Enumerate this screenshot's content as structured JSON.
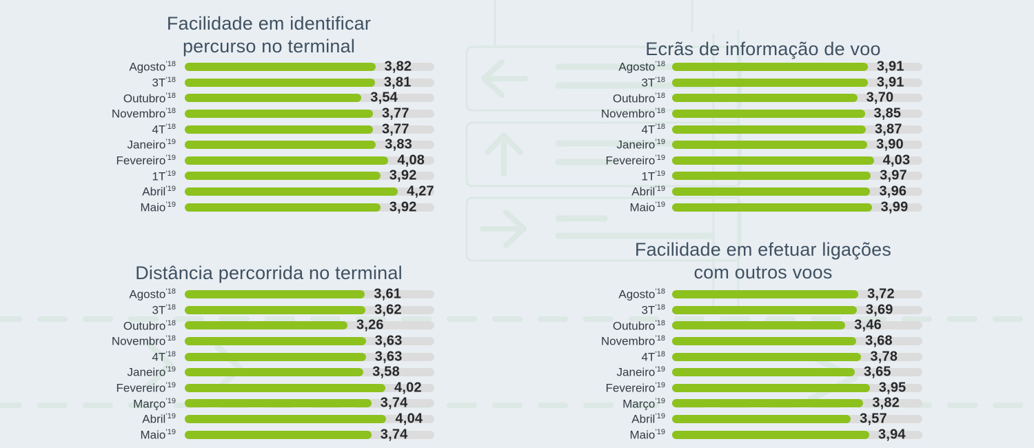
{
  "colors": {
    "background": "#e9eef3",
    "bar_green": "#8dc21e",
    "track_gray": "#dcdcdc",
    "title_text": "#3f5161",
    "label_text": "#323a42",
    "value_text": "#26292c",
    "watermark_teal": "#dbe8e3"
  },
  "decor": {
    "signage_icons": [
      "left-arrow-icon",
      "up-arrow-icon",
      "right-arrow-icon"
    ],
    "dashed_guide_lines": 2,
    "chevron_arrows": 3
  },
  "chart_data": [
    {
      "type": "bar",
      "orientation": "horizontal",
      "title": "Facilidade em identificar percurso no terminal",
      "title_lines": [
        "Facilidade em identificar",
        "percurso no terminal"
      ],
      "xlim": [
        0,
        5
      ],
      "grid": false,
      "value_format": "comma-decimal",
      "rows": [
        {
          "category": "Agosto",
          "period": "’18",
          "value": 3.82,
          "display": "3,82"
        },
        {
          "category": "3T",
          "period": "’18",
          "value": 3.81,
          "display": "3,81"
        },
        {
          "category": "Outubro",
          "period": "’18",
          "value": 3.54,
          "display": "3,54"
        },
        {
          "category": "Novembro",
          "period": "’18",
          "value": 3.77,
          "display": "3,77"
        },
        {
          "category": "4T",
          "period": "’18",
          "value": 3.77,
          "display": "3,77"
        },
        {
          "category": "Janeiro",
          "period": "’19",
          "value": 3.83,
          "display": "3,83"
        },
        {
          "category": "Fevereiro",
          "period": "’19",
          "value": 4.08,
          "display": "4,08"
        },
        {
          "category": "1T",
          "period": "’19",
          "value": 3.92,
          "display": "3,92"
        },
        {
          "category": "Abril",
          "period": "’19",
          "value": 4.27,
          "display": "4,27"
        },
        {
          "category": "Maio",
          "period": "’19",
          "value": 3.92,
          "display": "3,92"
        }
      ]
    },
    {
      "type": "bar",
      "orientation": "horizontal",
      "title": "Ecrãs de informação de voo",
      "title_lines": [
        "Ecrãs de informação de voo"
      ],
      "xlim": [
        0,
        5
      ],
      "grid": false,
      "value_format": "comma-decimal",
      "rows": [
        {
          "category": "Agosto",
          "period": "’18",
          "value": 3.91,
          "display": "3,91"
        },
        {
          "category": "3T",
          "period": "’18",
          "value": 3.91,
          "display": "3,91"
        },
        {
          "category": "Outubro",
          "period": "’18",
          "value": 3.7,
          "display": "3,70"
        },
        {
          "category": "Novembro",
          "period": "’18",
          "value": 3.85,
          "display": "3,85"
        },
        {
          "category": "4T",
          "period": "’18",
          "value": 3.87,
          "display": "3,87"
        },
        {
          "category": "Janeiro",
          "period": "’19",
          "value": 3.9,
          "display": "3,90"
        },
        {
          "category": "Fevereiro",
          "period": "’19",
          "value": 4.03,
          "display": "4,03"
        },
        {
          "category": "1T",
          "period": "’19",
          "value": 3.97,
          "display": "3,97"
        },
        {
          "category": "Abril",
          "period": "’19",
          "value": 3.96,
          "display": "3,96"
        },
        {
          "category": "Maio",
          "period": "’19",
          "value": 3.99,
          "display": "3,99"
        }
      ]
    },
    {
      "type": "bar",
      "orientation": "horizontal",
      "title": "Distância percorrida no terminal",
      "title_lines": [
        "Distância percorrida no terminal"
      ],
      "xlim": [
        0,
        5
      ],
      "grid": false,
      "value_format": "comma-decimal",
      "rows": [
        {
          "category": "Agosto",
          "period": "’18",
          "value": 3.61,
          "display": "3,61"
        },
        {
          "category": "3T",
          "period": "’18",
          "value": 3.62,
          "display": "3,62"
        },
        {
          "category": "Outubro",
          "period": "’18",
          "value": 3.26,
          "display": "3,26"
        },
        {
          "category": "Novembro",
          "period": "’18",
          "value": 3.63,
          "display": "3,63"
        },
        {
          "category": "4T",
          "period": "’18",
          "value": 3.63,
          "display": "3,63"
        },
        {
          "category": "Janeiro",
          "period": "’19",
          "value": 3.58,
          "display": "3,58"
        },
        {
          "category": "Fevereiro",
          "period": "’19",
          "value": 4.02,
          "display": "4,02"
        },
        {
          "category": "Março",
          "period": "’19",
          "value": 3.74,
          "display": "3,74"
        },
        {
          "category": "Abril",
          "period": "’19",
          "value": 4.04,
          "display": "4,04"
        },
        {
          "category": "Maio",
          "period": "’19",
          "value": 3.74,
          "display": "3,74"
        }
      ]
    },
    {
      "type": "bar",
      "orientation": "horizontal",
      "title": "Facilidade em efetuar ligações com outros voos",
      "title_lines": [
        "Facilidade em efetuar ligações",
        "com outros voos"
      ],
      "xlim": [
        0,
        5
      ],
      "grid": false,
      "value_format": "comma-decimal",
      "rows": [
        {
          "category": "Agosto",
          "period": "’18",
          "value": 3.72,
          "display": "3,72"
        },
        {
          "category": "3T",
          "period": "’18",
          "value": 3.69,
          "display": "3,69"
        },
        {
          "category": "Outubro",
          "period": "’18",
          "value": 3.46,
          "display": "3,46"
        },
        {
          "category": "Novembro",
          "period": "’18",
          "value": 3.68,
          "display": "3,68"
        },
        {
          "category": "4T",
          "period": "’18",
          "value": 3.78,
          "display": "3,78"
        },
        {
          "category": "Janeiro",
          "period": "’19",
          "value": 3.65,
          "display": "3,65"
        },
        {
          "category": "Fevereiro",
          "period": "’19",
          "value": 3.95,
          "display": "3,95"
        },
        {
          "category": "Março",
          "period": "’19",
          "value": 3.82,
          "display": "3,82"
        },
        {
          "category": "Abril",
          "period": "’19",
          "value": 3.57,
          "display": "3,57"
        },
        {
          "category": "Maio",
          "period": "’19",
          "value": 3.94,
          "display": "3,94"
        }
      ]
    }
  ]
}
